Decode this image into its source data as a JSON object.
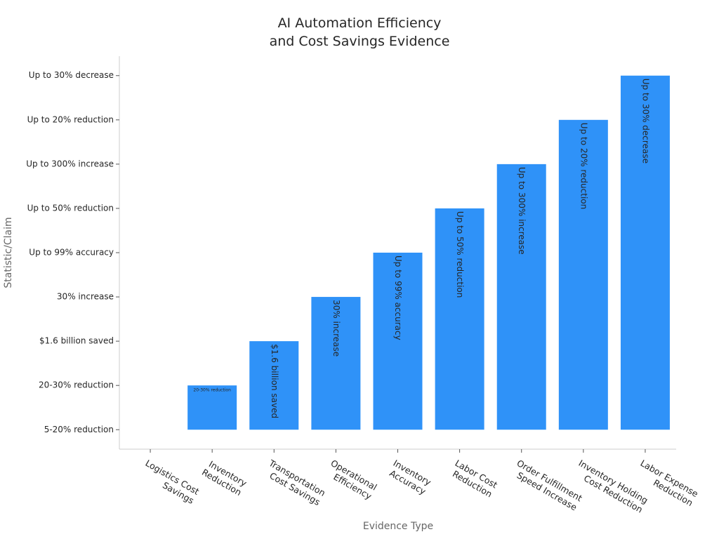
{
  "chart_data": {
    "type": "bar",
    "title": "AI Automation Efficiency\nand Cost Savings Evidence",
    "xlabel": "Evidence Type",
    "ylabel": "Statistic/Claim",
    "categories": [
      "Logistics Cost\nSavings",
      "Inventory\nReduction",
      "Transportation\nCost Savings",
      "Operational\nEfficiency",
      "Inventory\nAccuracy",
      "Labor Cost\nReduction",
      "Order Fulfillment\nSpeed Increase",
      "Inventory Holding\nCost Reduction",
      "Labor Expense\nReduction"
    ],
    "values": [
      0,
      1,
      2,
      3,
      4,
      5,
      6,
      7,
      8
    ],
    "value_labels": [
      null,
      "20-30% reduction",
      "$1.6 billion saved",
      "30% increase",
      "Up to 99% accuracy",
      "Up to 50% reduction",
      "Up to 300% increase",
      "Up to 20% reduction",
      "Up to 30% decrease"
    ],
    "color": "#2f92f8",
    "ylim": [
      -0.44,
      8.44
    ],
    "yticks": [
      {
        "value": 0,
        "label": "5-20% reduction"
      },
      {
        "value": 1,
        "label": "20-30% reduction"
      },
      {
        "value": 2,
        "label": "$1.6 billion saved"
      },
      {
        "value": 3,
        "label": "30% increase"
      },
      {
        "value": 4,
        "label": "Up to 99% accuracy"
      },
      {
        "value": 5,
        "label": "Up to 50% reduction"
      },
      {
        "value": 6,
        "label": "Up to 300% increase"
      },
      {
        "value": 7,
        "label": "Up to 20% reduction"
      },
      {
        "value": 8,
        "label": "Up to 30% decrease"
      }
    ]
  }
}
